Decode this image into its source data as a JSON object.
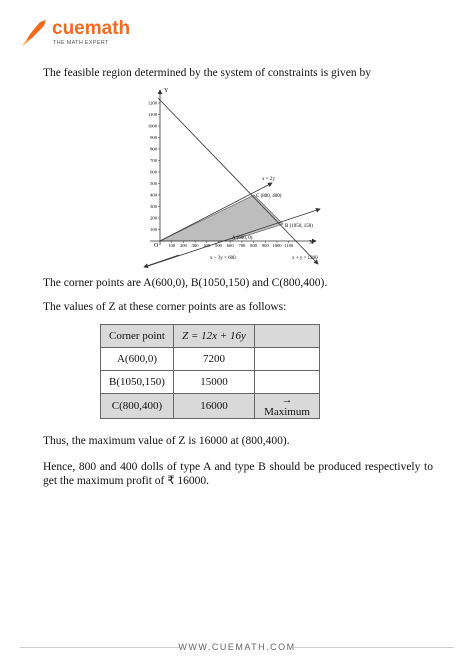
{
  "header": {
    "brand": "cuemath",
    "tagline": "THE MATH EXPERT"
  },
  "intro": "The feasible region determined by the system of constraints is given by",
  "figure": {
    "xticks": [
      100,
      200,
      300,
      400,
      500,
      600,
      700,
      800,
      900,
      1000,
      1100
    ],
    "yticks": [
      100,
      200,
      300,
      400,
      500,
      600,
      700,
      800,
      900,
      1000,
      1100,
      1200
    ],
    "x_axis": "X",
    "y_axis": "Y",
    "origin": "O",
    "points": [
      "A (600, 0)",
      "B (1050, 150)",
      "C (800, 400)"
    ],
    "lines": [
      "x = 2y",
      "x − 3y = 600",
      "x + y = 1200"
    ]
  },
  "corner_text": "The corner points are A(600,0), B(1050,150) and C(800,400).",
  "z_text": "The values of Z at these corner points are as follows:",
  "table": {
    "header": [
      "Corner point",
      "Z = 12x + 16y"
    ],
    "rows": [
      [
        "A(600,0)",
        "7200"
      ],
      [
        "B(1050,150)",
        "15000"
      ],
      [
        "C(800,400)",
        "16000",
        "→ Maximum"
      ]
    ]
  },
  "conclusion": "Thus, the maximum value of Z is 16000 at (800,400).",
  "final": "Hence, 800 and 400 dolls of type A and type B should be produced respectively to get the maximum profit of ₹ 16000.",
  "footer": "WWW.CUEMATH.COM"
}
